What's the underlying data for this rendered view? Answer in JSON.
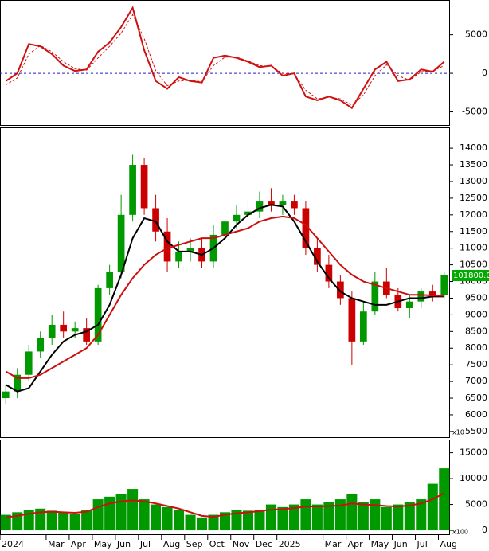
{
  "chart_data": [
    {
      "type": "line",
      "series": [
        {
          "name": "oscillator",
          "color": "#d01010",
          "dashed": false,
          "values": [
            -1000,
            0,
            3800,
            3500,
            2500,
            1000,
            300,
            500,
            2800,
            4000,
            6000,
            8500,
            3000,
            -1000,
            -2000,
            -500,
            -1000,
            -1200,
            2000,
            2300,
            2000,
            1500,
            800,
            1000,
            -300,
            0,
            -3000,
            -3500,
            -3000,
            -3500,
            -4500,
            -2000,
            500,
            1500,
            -1000,
            -800,
            500,
            200,
            1500
          ]
        },
        {
          "name": "signal",
          "color": "#d01010",
          "dashed": true,
          "values": [
            -1500,
            -600,
            2500,
            3600,
            2800,
            1500,
            600,
            400,
            2000,
            3500,
            5200,
            7600,
            4500,
            300,
            -1600,
            -1000,
            -900,
            -1100,
            1000,
            2100,
            2100,
            1600,
            1000,
            900,
            0,
            -100,
            -2200,
            -3300,
            -3100,
            -3300,
            -4100,
            -2800,
            -300,
            1100,
            -300,
            -900,
            200,
            300,
            1000
          ]
        }
      ],
      "ylim": [
        -6700,
        9400
      ],
      "yticks": [
        -5000,
        0,
        5000
      ],
      "zero_line_color": "#2020c0"
    },
    {
      "type": "candlestick",
      "open": [
        6500,
        6700,
        7200,
        7900,
        8300,
        8700,
        8500,
        8600,
        8200,
        9800,
        10300,
        12000,
        13500,
        12200,
        11500,
        10600,
        10900,
        11000,
        10600,
        11400,
        11800,
        12000,
        12100,
        12400,
        12300,
        12400,
        12200,
        11000,
        10500,
        10000,
        9500,
        8200,
        9100,
        10000,
        9600,
        9200,
        9400,
        9700,
        9600
      ],
      "high": [
        6900,
        7400,
        8100,
        8500,
        9000,
        9100,
        8800,
        8900,
        9900,
        10500,
        12600,
        13800,
        13700,
        12600,
        11900,
        11200,
        11300,
        11300,
        11700,
        12100,
        12300,
        12500,
        12700,
        12800,
        12600,
        12600,
        12400,
        11300,
        10800,
        10200,
        9700,
        9400,
        10300,
        10400,
        9800,
        9600,
        9800,
        9900,
        10300
      ],
      "low": [
        6300,
        6500,
        7000,
        7700,
        8100,
        8300,
        8300,
        8100,
        8100,
        9600,
        10100,
        11800,
        12000,
        11200,
        10300,
        10400,
        10600,
        10400,
        10400,
        11200,
        11600,
        11800,
        11900,
        12100,
        12000,
        12000,
        10800,
        10300,
        9800,
        9300,
        7500,
        8100,
        9000,
        9500,
        9100,
        8900,
        9200,
        9400,
        9500
      ],
      "close": [
        6700,
        7200,
        7900,
        8300,
        8700,
        8500,
        8600,
        8200,
        9800,
        10300,
        12000,
        13500,
        12200,
        11500,
        10600,
        10900,
        11000,
        10600,
        11400,
        11800,
        12000,
        12100,
        12400,
        12300,
        12400,
        12200,
        11000,
        10500,
        10000,
        9500,
        8200,
        9100,
        10000,
        9600,
        9200,
        9400,
        9700,
        9600,
        10180
      ],
      "up_color": "#009900",
      "down_color": "#cc0000",
      "series": [
        {
          "name": "ma-short",
          "color": "#000000",
          "values": [
            6900,
            6700,
            6800,
            7300,
            7800,
            8200,
            8400,
            8500,
            8700,
            9300,
            10200,
            11300,
            11900,
            11800,
            11200,
            10900,
            10900,
            10800,
            11000,
            11300,
            11700,
            12000,
            12200,
            12300,
            12250,
            11800,
            11200,
            10600,
            10100,
            9700,
            9500,
            9400,
            9300,
            9300,
            9400,
            9500,
            9500,
            9550,
            9550
          ]
        },
        {
          "name": "ma-long",
          "color": "#cc1010",
          "values": [
            7300,
            7100,
            7100,
            7200,
            7400,
            7600,
            7800,
            8000,
            8400,
            9000,
            9600,
            10100,
            10500,
            10800,
            11000,
            11100,
            11200,
            11300,
            11300,
            11400,
            11500,
            11600,
            11800,
            11900,
            11950,
            11900,
            11700,
            11300,
            10900,
            10500,
            10200,
            10000,
            9900,
            9800,
            9700,
            9600,
            9600,
            9580,
            9570
          ]
        }
      ],
      "last_price_label": "101800.0",
      "scale_note": "x10",
      "ylim": [
        5330,
        14600
      ],
      "yticks": [
        5500,
        6000,
        6500,
        7000,
        7500,
        8000,
        8500,
        9000,
        9500,
        10000,
        10500,
        11000,
        11500,
        12000,
        12500,
        13000,
        13500,
        14000
      ]
    },
    {
      "type": "bar",
      "categories": [
        "2024",
        null,
        null,
        null,
        "Mar",
        null,
        "Apr",
        null,
        "May",
        null,
        "Jun",
        null,
        "Jul",
        null,
        "Aug",
        null,
        "Sep",
        null,
        "Oct",
        null,
        "Nov",
        null,
        "Dec",
        null,
        "2025",
        null,
        null,
        null,
        "Mar",
        null,
        "Apr",
        null,
        "May",
        null,
        "Jun",
        null,
        "Jul",
        null,
        "Aug"
      ],
      "values": [
        3000,
        3500,
        4000,
        4200,
        3800,
        3500,
        3200,
        4000,
        6000,
        6500,
        7000,
        8000,
        6000,
        5000,
        4500,
        4000,
        3000,
        2500,
        3000,
        3500,
        4000,
        3800,
        4000,
        5000,
        4500,
        5000,
        6000,
        5000,
        5500,
        6000,
        7000,
        5500,
        6000,
        4500,
        5000,
        5500,
        6000,
        9000,
        12000
      ],
      "color": "#009900",
      "series": [
        {
          "name": "volume-ma",
          "color": "#cc1010",
          "values": [
            2500,
            2800,
            3200,
            3500,
            3600,
            3500,
            3400,
            3600,
            4500,
            5200,
            5600,
            5800,
            5600,
            5200,
            4700,
            4200,
            3500,
            2800,
            2600,
            3000,
            3300,
            3500,
            3700,
            4000,
            4100,
            4300,
            4600,
            4600,
            4700,
            4800,
            5200,
            5000,
            4900,
            4700,
            4600,
            4800,
            5200,
            6000,
            7200
          ]
        }
      ],
      "scale_note": "x100",
      "ylim": [
        -760,
        17400
      ],
      "yticks": [
        0,
        5000,
        10000,
        15000
      ]
    }
  ]
}
